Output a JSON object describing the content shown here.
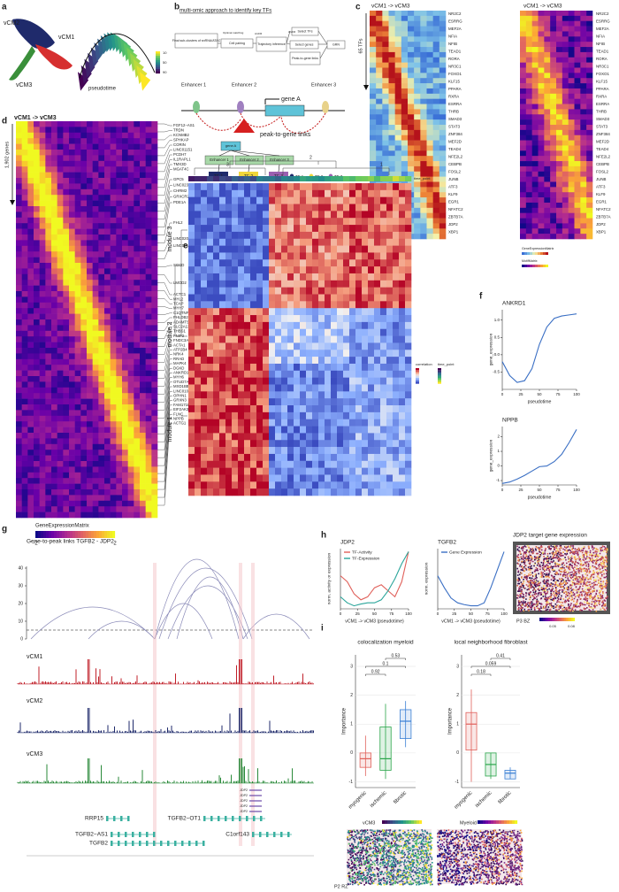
{
  "letters": [
    "a",
    "b",
    "c",
    "d",
    "e",
    "f",
    "g",
    "h",
    "i"
  ],
  "a": {
    "labels": [
      "vCM2",
      "vCM1",
      "vCM3",
      "pseudotime"
    ],
    "scale": [
      10,
      50,
      90
    ]
  },
  "b": {
    "title": "multi-omic approach to identify key TFs",
    "flow": [
      "Final sub-clusters of snRNA/ATAC",
      "Optimal matching",
      "Cell pairing",
      "ArchR",
      "Trajectory inference",
      "ArchR",
      "Select TFs",
      "Select genes",
      "Peak-to-gene links",
      "GRN"
    ],
    "enhancers": [
      "Enhancer 1",
      "Enhancer 2",
      "Enhancer 3"
    ],
    "gene": "gene A",
    "links": "peak-to-gene links",
    "network": [
      "gene A",
      "Enhancer 1",
      "Enhancer 2",
      "Enhancer 3",
      "TF 1",
      "TF 2",
      "TF 3"
    ],
    "legend": [
      "TF 1",
      "TF 2",
      "TF 3"
    ]
  },
  "c": {
    "titles": [
      "vCM1 -> vCM3",
      "vCM1 -> vCM3"
    ],
    "count": "65 TFs",
    "genes": [
      "NR2C2",
      "ESRRG",
      "MEF2A",
      "NFIA",
      "NFIB",
      "TEAD1",
      "RORA",
      "NR3C1",
      "FOXO1",
      "KLF15",
      "PPARA",
      "RXRA",
      "ESRRA",
      "THRB",
      "SMAD3",
      "STAT3",
      "ZNF384",
      "MEF2D",
      "TEAD4",
      "NFE2L2",
      "CEBPB",
      "FOSL2",
      "JUNB",
      "ATF3",
      "KLF9",
      "EGR1",
      "NFATC2",
      "ZBTB7A",
      "JDP2",
      "XBP1"
    ],
    "legend": [
      "GeneExpressionMatrix",
      "MotifMatrix"
    ]
  },
  "d": {
    "title": "vCM1 -> vCM3",
    "count": "1,902 genes",
    "genes": [
      "FGF12−AS1",
      "TRDN",
      "KCNMB2",
      "SPHKAP",
      "CORIN",
      "LINC01151",
      "PCDH7",
      "IL1RAPL1",
      "TMX3D",
      "MGAT4C",
      "GPC5",
      "LINC02388",
      "CHRM2",
      "GRXCR2",
      "PDE1A",
      "FHL2",
      "LINC02059",
      "LINC02147",
      "SGCD",
      "LMOD2",
      "ACTC1",
      "MYL2",
      "TCAP",
      "MYH7",
      "C1QTNF1",
      "PHLDB2",
      "ADAMTS9−AS1",
      "SLC2A13",
      "THBS1",
      "FNIP2",
      "FNDC3A",
      "ACTA1",
      "ATP2B4",
      "NRK4",
      "RRAD",
      "MAPK4",
      "DGKD",
      "ANKRD1",
      "MYH6",
      "OTUD7A",
      "MXD1BB",
      "LINC01091",
      "OPHN1",
      "GRXN3",
      "FAM171E1",
      "EIF2AK3",
      "FLNC",
      "NPPB",
      "ACTG1"
    ],
    "legend": "GeneExpressionMatrix",
    "scale": [
      -2,
      2
    ]
  },
  "e": {
    "clusters": [
      "3",
      "2",
      "1"
    ],
    "track": "time_point",
    "modules": [
      "module 3",
      "module 2",
      "module 1"
    ],
    "legend": [
      "correlation",
      "time_point"
    ]
  },
  "g": {
    "title": "Gene-to-peak links TGFB2 - JDP2",
    "yticks": [
      0,
      10,
      20,
      30,
      40
    ],
    "tracks": [
      "vCM1",
      "vCM2",
      "vCM3"
    ],
    "genes": [
      "RRP15",
      "TGFB2−AS1",
      "TGFB2",
      "TGFB2−OT1",
      "C1orf143"
    ],
    "jdp2": [
      "JDP2",
      "JDP2",
      "JDP2",
      "JDP2",
      "JDP2"
    ]
  },
  "h": {
    "title": "JDP2 target gene expression",
    "sample": "P3 BZ",
    "scale": [
      0.05,
      0.08
    ]
  },
  "i": {
    "images": [
      "vCM3",
      "Myeloid"
    ],
    "sample": "P2 RZ"
  },
  "chart_data": [
    {
      "type": "line",
      "title": "ANKRD1",
      "xlabel": "pseudotime",
      "ylabel": "gene_expression",
      "color": "#3a6fc4",
      "x": [
        0,
        10,
        20,
        30,
        40,
        50,
        60,
        70,
        80,
        90,
        100
      ],
      "values": [
        -0.2,
        -0.6,
        -0.8,
        -0.75,
        -0.4,
        0.3,
        0.8,
        1.05,
        1.12,
        1.15,
        1.18
      ],
      "xlim": [
        0,
        100
      ],
      "xticks": [
        0,
        25,
        50,
        75,
        100
      ],
      "ylim": [
        -1,
        1.3
      ],
      "yticks": [
        -0.5,
        {
          "value": 0,
          "label": "0.0"
        },
        0.5,
        {
          "value": 1,
          "label": "1.0"
        }
      ]
    },
    {
      "type": "line",
      "title": "NPPB",
      "xlabel": "pseudotime",
      "ylabel": "gene_expression",
      "color": "#3a6fc4",
      "x": [
        0,
        10,
        20,
        30,
        40,
        50,
        60,
        70,
        80,
        90,
        100
      ],
      "values": [
        -1.2,
        -1.1,
        -0.9,
        -0.65,
        -0.35,
        -0.05,
        0.0,
        0.3,
        0.8,
        1.6,
        2.5
      ],
      "xlim": [
        0,
        100
      ],
      "xticks": [
        0,
        25,
        50,
        75,
        100
      ],
      "ylim": [
        -1.3,
        2.7
      ],
      "yticks": [
        -1,
        0,
        1,
        2
      ]
    },
    {
      "type": "line",
      "title": "JDP2",
      "xlabel": "vCM1 -> vCM3 (pseudotime)",
      "ylabel": "norm. activity or expression",
      "legend": "top-left",
      "x": [
        0,
        10,
        20,
        30,
        40,
        50,
        60,
        70,
        80,
        90,
        100
      ],
      "series": [
        {
          "name": "TF-Activity",
          "color": "#e0605a",
          "values": [
            0.55,
            0.45,
            0.25,
            0.15,
            0.2,
            0.35,
            0.4,
            0.3,
            0.2,
            0.45,
            0.95
          ]
        },
        {
          "name": "TF-Expression",
          "color": "#2aa59a",
          "values": [
            0.2,
            0.1,
            0.05,
            0.08,
            0.1,
            0.1,
            0.15,
            0.3,
            0.5,
            0.75,
            0.95
          ]
        }
      ],
      "xlim": [
        0,
        100
      ],
      "xticks": [
        0,
        25,
        50,
        75,
        100
      ],
      "ylim": [
        0,
        1
      ]
    },
    {
      "type": "line",
      "title": "TGFB2",
      "xlabel": "vCM1 -> vCM3 (pseudotime)",
      "ylabel": "norm. expression",
      "legend": "top-left",
      "x": [
        0,
        10,
        20,
        30,
        40,
        50,
        60,
        70,
        80,
        90,
        100
      ],
      "series": [
        {
          "name": "Gene Expression",
          "color": "#3a6fc4",
          "values": [
            0.55,
            0.35,
            0.18,
            0.1,
            0.07,
            0.05,
            0.05,
            0.1,
            0.35,
            0.65,
            0.95
          ]
        }
      ],
      "xlim": [
        0,
        100
      ],
      "xticks": [
        0,
        25,
        50,
        75,
        100
      ],
      "ylim": [
        0,
        1
      ]
    },
    {
      "type": "box",
      "title": "colocalization myeloid",
      "ylabel": "Importance",
      "categories": [
        "myogenic",
        "ischemic",
        "fibrotic"
      ],
      "colors": [
        "#e0605a",
        "#2aa54a",
        "#3a7fd4"
      ],
      "boxes": [
        {
          "min": -0.8,
          "q1": -0.5,
          "median": -0.2,
          "q3": 0,
          "max": 0.6
        },
        {
          "min": -0.9,
          "q1": -0.6,
          "median": -0.2,
          "q3": 0.9,
          "max": 1.7
        },
        {
          "min": 0.2,
          "q1": 0.5,
          "median": 1.1,
          "q3": 1.5,
          "max": 1.8
        }
      ],
      "pvalues": [
        0.92,
        0.1,
        0.53
      ],
      "ylim": [
        -1.2,
        3.4
      ],
      "yticks": [
        -1,
        0,
        1,
        2,
        3
      ]
    },
    {
      "type": "box",
      "title": "local neighborhood fibroblast",
      "ylabel": "Importance",
      "categories": [
        "myogenic",
        "ischemic",
        "fibrotic"
      ],
      "colors": [
        "#e0605a",
        "#2aa54a",
        "#3a7fd4"
      ],
      "boxes": [
        {
          "min": -1.0,
          "q1": 0.1,
          "median": 1.0,
          "q3": 1.4,
          "max": 2.2
        },
        {
          "min": -0.9,
          "q1": -0.8,
          "median": -0.4,
          "q3": 0,
          "max": 0
        },
        {
          "min": -0.9,
          "q1": -0.9,
          "median": -0.7,
          "q3": -0.6,
          "max": -0.5
        }
      ],
      "pvalues": [
        0.18,
        0.059,
        0.41
      ],
      "ylim": [
        -1.2,
        3.4
      ],
      "yticks": [
        -1,
        0,
        1,
        2,
        3
      ]
    }
  ]
}
